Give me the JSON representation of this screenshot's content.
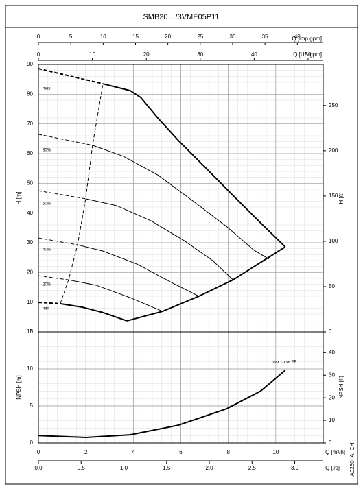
{
  "header": {
    "title": "SMB20…/3VME05P11",
    "side_note": "A0260_A_CH"
  },
  "chart_data": [
    {
      "type": "line",
      "y_label": "H [m]",
      "y2_label": "H [ft]",
      "xlim": [
        0,
        12
      ],
      "ylim": [
        0,
        90
      ],
      "yticks": [
        0,
        10,
        20,
        30,
        40,
        50,
        60,
        70,
        80,
        90
      ],
      "y2lim": [
        0,
        295.3
      ],
      "y2ticks": [
        0,
        50,
        100,
        150,
        200,
        250
      ],
      "grid": true,
      "minor_divisions": 5,
      "x_axes": [
        {
          "label": "Q [imp gpm]",
          "xlim": [
            0,
            44
          ],
          "xticks": [
            0,
            5,
            10,
            15,
            20,
            25,
            30,
            35,
            40
          ]
        },
        {
          "label": "Q [US gpm]",
          "xlim": [
            0,
            52.8
          ],
          "xticks": [
            0,
            10,
            20,
            30,
            40,
            50
          ]
        }
      ],
      "series": [
        {
          "name": "max",
          "color": "#000000",
          "width": 2,
          "x": [
            2.72,
            3.87,
            4.31,
            5.03,
            5.9,
            7.05,
            8.2,
            9.36,
            10.4
          ],
          "values": [
            83.5,
            81.2,
            78.9,
            72,
            64.4,
            55.2,
            45.9,
            36.7,
            28.6
          ]
        },
        {
          "color": "#000000",
          "width": 2,
          "dashed": true,
          "x": [
            0,
            2.72
          ],
          "values": [
            88.6,
            83.5
          ]
        },
        {
          "name": "80%",
          "color": "#000000",
          "width": 1,
          "x": [
            2.28,
            3.58,
            5.03,
            6.47,
            7.92,
            9.08,
            9.71
          ],
          "values": [
            62.8,
            59.1,
            52.8,
            44.3,
            35.5,
            27.5,
            24.5
          ]
        },
        {
          "color": "#000000",
          "width": 1,
          "dashed": true,
          "x": [
            0,
            2.28
          ],
          "values": [
            66.5,
            62.8
          ]
        },
        {
          "name": "60%",
          "color": "#000000",
          "width": 1,
          "x": [
            1.99,
            3.29,
            4.74,
            6.18,
            7.34,
            8.2
          ],
          "values": [
            44.8,
            42.5,
            37.4,
            30.5,
            24,
            17.5
          ]
        },
        {
          "color": "#000000",
          "width": 1,
          "dashed": true,
          "x": [
            0,
            1.99
          ],
          "values": [
            47.5,
            44.8
          ]
        },
        {
          "name": "40%",
          "color": "#000000",
          "width": 1,
          "x": [
            1.65,
            2.72,
            4.16,
            5.61,
            6.76
          ],
          "values": [
            29.3,
            27.2,
            22.8,
            16.6,
            12
          ]
        },
        {
          "color": "#000000",
          "width": 1,
          "dashed": true,
          "x": [
            0,
            1.65
          ],
          "values": [
            31.6,
            29.3
          ]
        },
        {
          "name": "20%",
          "color": "#000000",
          "width": 1,
          "x": [
            1.27,
            2.43,
            3.87,
            5.23
          ],
          "values": [
            17.5,
            15.7,
            11.5,
            6.9
          ]
        },
        {
          "color": "#000000",
          "width": 1,
          "dashed": true,
          "x": [
            0,
            1.27
          ],
          "values": [
            18.9,
            17.5
          ]
        },
        {
          "name": "min",
          "color": "#000000",
          "width": 2,
          "x": [
            0.92,
            1.85,
            2.72,
            3.73
          ],
          "values": [
            9.5,
            8.3,
            6.5,
            3.7
          ]
        },
        {
          "color": "#000000",
          "width": 2,
          "dashed": true,
          "x": [
            0,
            0.92
          ],
          "values": [
            9.9,
            9.5
          ]
        },
        {
          "color": "#000000",
          "width": 2,
          "x": [
            10.4,
            8.2,
            6.76,
            5.23,
            3.73
          ],
          "values": [
            28.6,
            17.5,
            12,
            6.9,
            3.7
          ]
        },
        {
          "color": "#000000",
          "width": 1,
          "dashed": true,
          "x": [
            0.92,
            1.27,
            1.65,
            1.99,
            2.28,
            2.72
          ],
          "values": [
            9.5,
            17.5,
            29.3,
            44.8,
            62.8,
            83.5
          ]
        }
      ]
    },
    {
      "type": "line",
      "y_label": "NPSH [m]",
      "y2_label": "NPSH [ft]",
      "x_label": "Q [m³/h]",
      "xlim": [
        0,
        12
      ],
      "xticks": [
        0,
        2,
        4,
        6,
        8,
        10
      ],
      "ylim": [
        0,
        15
      ],
      "yticks": [
        0,
        5,
        10,
        15
      ],
      "y2lim": [
        0,
        49.2
      ],
      "y2ticks": [
        0,
        10,
        20,
        30,
        40
      ],
      "grid": true,
      "minor_divisions": 5,
      "x_axes": [
        {
          "label": "Q [l/s]",
          "xlim": [
            0,
            3.333
          ],
          "xticks": [
            {
              "value": 0,
              "label": "0.0"
            },
            0.5,
            {
              "value": 1,
              "label": "1.0"
            },
            1.5,
            {
              "value": 2,
              "label": "2.0"
            },
            2.5,
            {
              "value": 3,
              "label": "3.0"
            }
          ]
        }
      ],
      "series": [
        {
          "name": "max curve 2P",
          "color": "#000000",
          "width": 2,
          "x": [
            0,
            2,
            3.87,
            5.9,
            7.92,
            9.36,
            10.4
          ],
          "values": [
            1.0,
            0.74,
            1.1,
            2.4,
            4.6,
            7,
            9.8
          ]
        }
      ]
    }
  ]
}
